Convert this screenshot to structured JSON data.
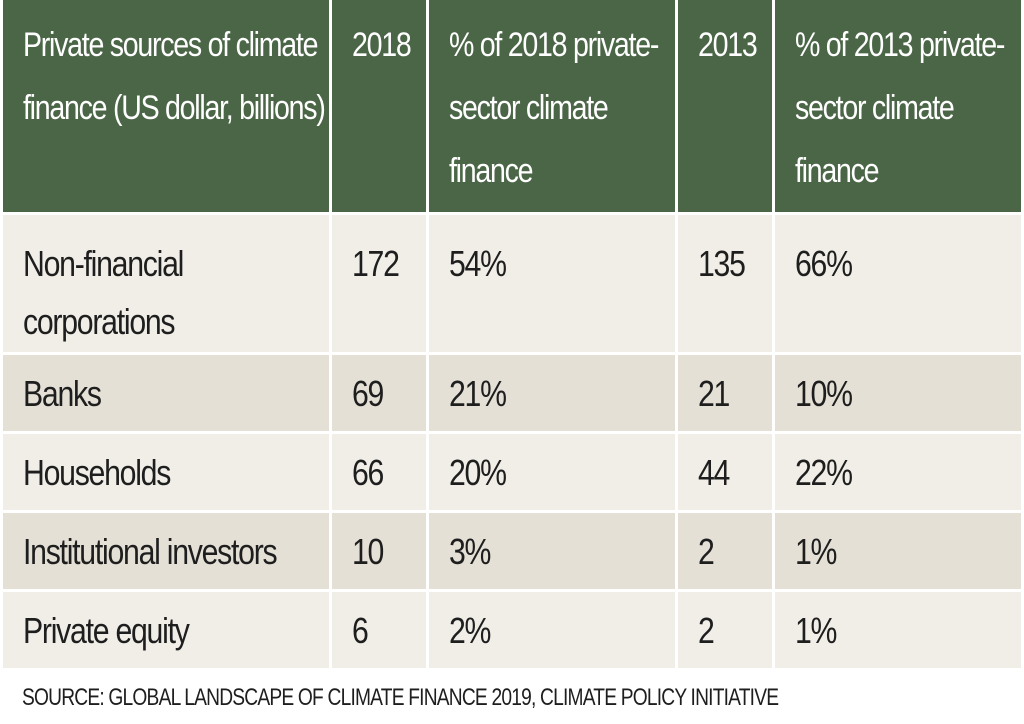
{
  "table": {
    "headers": [
      "Private sources of climate finance (US dollar, billions)",
      "2018",
      "% of 2018 private-sector climate finance",
      "2013",
      "% of 2013 private-sector climate finance"
    ],
    "rows": [
      [
        "Non-financial corporations",
        "172",
        "54%",
        "135",
        "66%"
      ],
      [
        "Banks",
        "69",
        "21%",
        "21",
        "10%"
      ],
      [
        "Households",
        "66",
        "20%",
        "44",
        "22%"
      ],
      [
        "Institutional investors",
        "10",
        "3%",
        "2",
        "1%"
      ],
      [
        "Private equity",
        "6",
        "2%",
        "2",
        "1%"
      ]
    ]
  },
  "source": "SOURCE: GLOBAL LANDSCAPE OF CLIMATE FINANCE 2019, CLIMATE POLICY INITIATIVE",
  "colors": {
    "header_bg": "#4b6647",
    "row_light": "#f1eee8",
    "row_dark": "#e4e0d6"
  }
}
